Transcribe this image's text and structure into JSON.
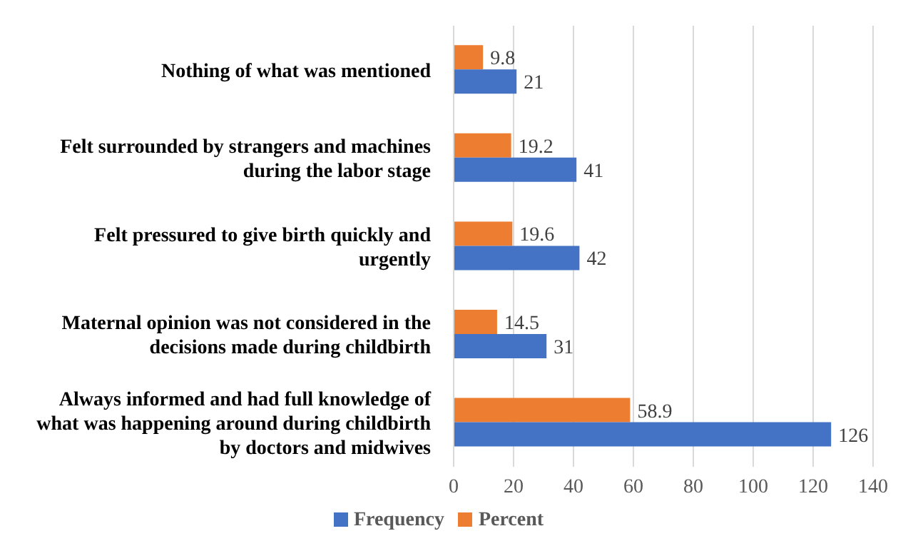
{
  "chart_data": {
    "type": "bar",
    "orientation": "horizontal",
    "categories": [
      "Nothing of what was mentioned",
      "Felt surrounded by strangers and machines during the labor stage",
      "Felt pressured to give birth quickly and urgently",
      "Maternal opinion was not considered in the decisions made during childbirth",
      "Always informed and had full knowledge of what was happening around during childbirth by doctors and midwives"
    ],
    "series": [
      {
        "name": "Percent",
        "color": "#ed7d31",
        "values": [
          9.8,
          19.2,
          19.6,
          14.5,
          58.9
        ]
      },
      {
        "name": "Frequency",
        "color": "#4472c4",
        "values": [
          21,
          41,
          42,
          31,
          126
        ]
      }
    ],
    "xlim": [
      0,
      140
    ],
    "xticks": [
      0,
      20,
      40,
      60,
      80,
      100,
      120,
      140
    ],
    "grid": "x",
    "legend": "bottom",
    "data_labels": true
  }
}
